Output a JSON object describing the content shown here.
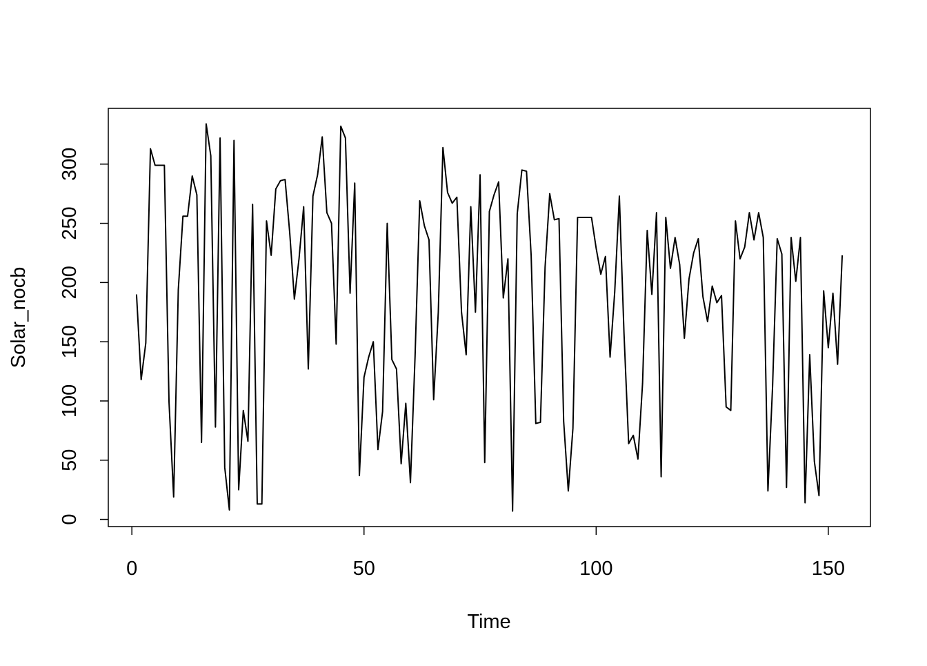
{
  "chart_data": {
    "type": "line",
    "x_label": "Time",
    "y_label": "Solar_nocb",
    "x": [
      1,
      2,
      3,
      4,
      5,
      6,
      7,
      8,
      9,
      10,
      11,
      12,
      13,
      14,
      15,
      16,
      17,
      18,
      19,
      20,
      21,
      22,
      23,
      24,
      25,
      26,
      27,
      28,
      29,
      30,
      31,
      32,
      33,
      34,
      35,
      36,
      37,
      38,
      39,
      40,
      41,
      42,
      43,
      44,
      45,
      46,
      47,
      48,
      49,
      50,
      51,
      52,
      53,
      54,
      55,
      56,
      57,
      58,
      59,
      60,
      61,
      62,
      63,
      64,
      65,
      66,
      67,
      68,
      69,
      70,
      71,
      72,
      73,
      74,
      75,
      76,
      77,
      78,
      79,
      80,
      81,
      82,
      83,
      84,
      85,
      86,
      87,
      88,
      89,
      90,
      91,
      92,
      93,
      94,
      95,
      96,
      97,
      98,
      99,
      100,
      101,
      102,
      103,
      104,
      105,
      106,
      107,
      108,
      109,
      110,
      111,
      112,
      113,
      114,
      115,
      116,
      117,
      118,
      119,
      120,
      121,
      122,
      123,
      124,
      125,
      126,
      127,
      128,
      129,
      130,
      131,
      132,
      133,
      134,
      135,
      136,
      137,
      138,
      139,
      140,
      141,
      142,
      143,
      144,
      145,
      146,
      147,
      148,
      149,
      150,
      151,
      152,
      153
    ],
    "series": [
      {
        "name": "Solar_nocb",
        "color": "#000000",
        "values": [
          190,
          118,
          149,
          313,
          299,
          299,
          299,
          99,
          19,
          194,
          256,
          256,
          290,
          274,
          65,
          334,
          307,
          78,
          322,
          44,
          8,
          320,
          25,
          92,
          66,
          266,
          13,
          13,
          252,
          223,
          279,
          286,
          287,
          242,
          186,
          220,
          264,
          127,
          273,
          291,
          323,
          259,
          250,
          148,
          332,
          322,
          191,
          284,
          37,
          120,
          137,
          150,
          59,
          91,
          250,
          135,
          127,
          47,
          98,
          31,
          138,
          269,
          248,
          236,
          101,
          175,
          314,
          276,
          267,
          272,
          175,
          139,
          264,
          175,
          291,
          48,
          260,
          274,
          285,
          187,
          220,
          7,
          258,
          295,
          294,
          223,
          81,
          82,
          213,
          275,
          253,
          254,
          83,
          24,
          77,
          255,
          255,
          255,
          255,
          229,
          207,
          222,
          137,
          192,
          273,
          157,
          64,
          71,
          51,
          115,
          244,
          190,
          259,
          36,
          255,
          212,
          238,
          215,
          153,
          203,
          225,
          237,
          188,
          167,
          197,
          183,
          189,
          95,
          92,
          252,
          220,
          230,
          259,
          236,
          259,
          238,
          24,
          112,
          237,
          224,
          27,
          238,
          201,
          238,
          14,
          139,
          49,
          20,
          193,
          145,
          191,
          131,
          223
        ]
      }
    ],
    "xlim": [
      -5.08,
      159.08
    ],
    "ylim": [
      -6.08,
      347.08
    ],
    "xticks": [
      0,
      50,
      100,
      150
    ],
    "yticks": [
      0,
      50,
      100,
      150,
      200,
      250,
      300
    ]
  }
}
